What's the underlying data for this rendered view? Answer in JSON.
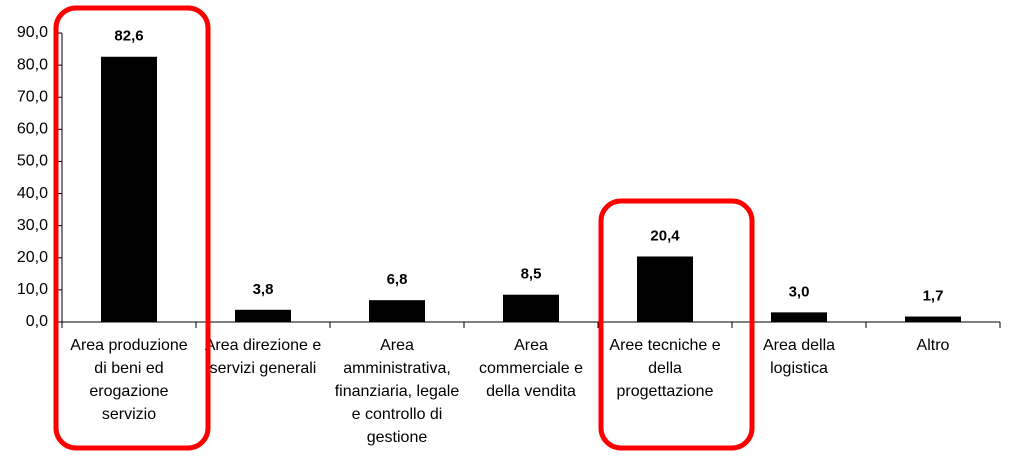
{
  "chart_data": {
    "type": "bar",
    "categories": [
      "Area produzione di beni ed erogazione servizio",
      "Area direzione e servizi generali",
      "Area amministrativa, finanziaria, legale e controllo di gestione",
      "Area commerciale e della vendita",
      "Aree tecniche e della progettazione",
      "Area della logistica",
      "Altro"
    ],
    "values": [
      82.6,
      3.8,
      6.8,
      8.5,
      20.4,
      3.0,
      1.7
    ],
    "value_labels": [
      "82,6",
      "3,8",
      "6,8",
      "8,5",
      "20,4",
      "3,0",
      "1,7"
    ],
    "color": "#000000",
    "ylim": [
      0,
      90
    ],
    "yticks": [
      {
        "value": 0,
        "label": "0,0"
      },
      {
        "value": 10,
        "label": "10,0"
      },
      {
        "value": 20,
        "label": "20,0"
      },
      {
        "value": 30,
        "label": "30,0"
      },
      {
        "value": 40,
        "label": "40,0"
      },
      {
        "value": 50,
        "label": "50,0"
      },
      {
        "value": 60,
        "label": "60,0"
      },
      {
        "value": 70,
        "label": "70,0"
      },
      {
        "value": 80,
        "label": "80,0"
      },
      {
        "value": 90,
        "label": "90,0"
      }
    ],
    "grid": false
  }
}
